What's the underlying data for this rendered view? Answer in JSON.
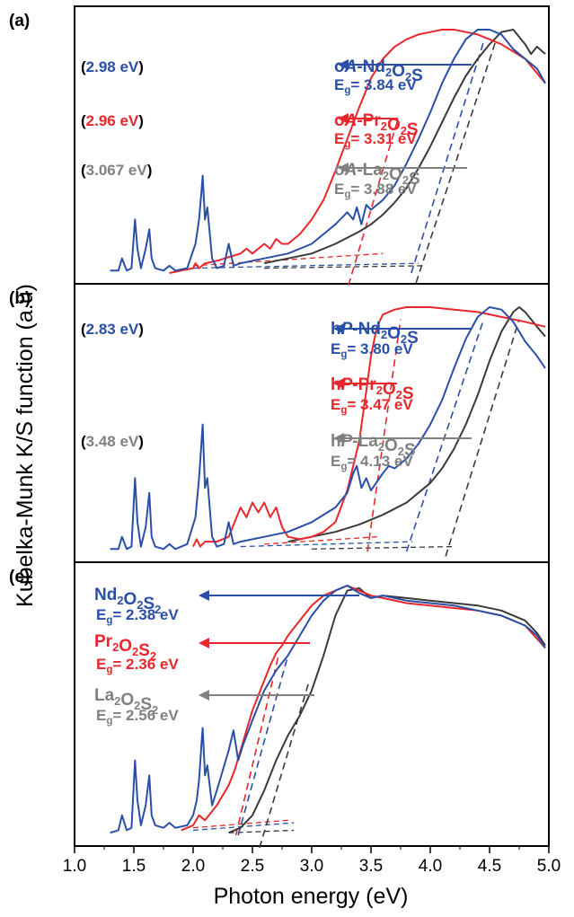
{
  "chart_data": {
    "type": "line",
    "ylabel": "Kubelka-Munk K/S function (a.u)",
    "xlabel": "Photon energy (eV)",
    "xlim": [
      1.0,
      5.0
    ],
    "x_ticks": [
      "1.0",
      "1.5",
      "2.0",
      "2.5",
      "3.0",
      "3.5",
      "4.0",
      "4.5",
      "5.0"
    ],
    "colors": {
      "Nd": "#2a4fa8",
      "Pr": "#e8262b",
      "La": "#3a3a3a",
      "La_label": "#808080"
    },
    "panels": [
      {
        "label": "(a)",
        "series": [
          {
            "compound": "oA-Nd2O2S",
            "prefix": "o",
            "phase": "A",
            "element": "Nd",
            "color_key": "Nd",
            "bandgap_eV": 3.84,
            "bandgap_text": "= 3.84 eV",
            "secondary_gap_text": "(2.98 eV)",
            "x": [
              1.3,
              1.37,
              1.4,
              1.44,
              1.48,
              1.51,
              1.53,
              1.56,
              1.6,
              1.63,
              1.65,
              1.68,
              1.75,
              1.8,
              1.85,
              1.95,
              2.02,
              2.05,
              2.07,
              2.08,
              2.1,
              2.12,
              2.16,
              2.2,
              2.26,
              2.3,
              2.34,
              2.4,
              2.5,
              2.6,
              2.8,
              3.0,
              3.2,
              3.3,
              3.35,
              3.38,
              3.42,
              3.46,
              3.5,
              3.6,
              3.7,
              3.8,
              3.9,
              4.0,
              4.1,
              4.2,
              4.3,
              4.4,
              4.5,
              4.55,
              4.6,
              4.7,
              4.8,
              4.9,
              4.97
            ],
            "y": [
              0.01,
              0.01,
              0.06,
              0.01,
              0.02,
              0.22,
              0.1,
              0.02,
              0.1,
              0.18,
              0.06,
              0.02,
              0.01,
              0.03,
              0.01,
              0.02,
              0.12,
              0.22,
              0.33,
              0.4,
              0.22,
              0.27,
              0.06,
              0.02,
              0.03,
              0.12,
              0.03,
              0.04,
              0.05,
              0.06,
              0.08,
              0.12,
              0.2,
              0.25,
              0.22,
              0.27,
              0.2,
              0.28,
              0.26,
              0.3,
              0.36,
              0.45,
              0.55,
              0.66,
              0.78,
              0.88,
              0.96,
              1.0,
              1.0,
              0.99,
              0.98,
              0.92,
              0.88,
              0.84,
              0.78
            ]
          },
          {
            "compound": "oA-Pr2O2S",
            "prefix": "o",
            "phase": "A",
            "element": "Pr",
            "color_key": "Pr",
            "bandgap_eV": 3.31,
            "bandgap_text": "= 3.31 eV",
            "secondary_gap_text": "(2.96 eV)",
            "x": [
              1.8,
              1.9,
              2.0,
              2.02,
              2.05,
              2.1,
              2.2,
              2.4,
              2.45,
              2.5,
              2.55,
              2.6,
              2.65,
              2.7,
              2.75,
              2.8,
              2.9,
              3.0,
              3.1,
              3.2,
              3.3,
              3.4,
              3.5,
              3.6,
              3.7,
              3.8,
              3.9,
              4.0,
              4.1,
              4.2,
              4.3,
              4.4,
              4.5,
              4.6,
              4.8,
              4.97
            ],
            "y": [
              0.0,
              0.01,
              0.02,
              0.04,
              0.02,
              0.04,
              0.05,
              0.08,
              0.1,
              0.08,
              0.1,
              0.12,
              0.1,
              0.14,
              0.12,
              0.12,
              0.16,
              0.22,
              0.3,
              0.42,
              0.55,
              0.68,
              0.8,
              0.88,
              0.93,
              0.96,
              0.98,
              0.99,
              1.0,
              1.0,
              0.99,
              0.98,
              0.96,
              0.94,
              0.88,
              0.78
            ]
          },
          {
            "compound": "oA-La2O2S",
            "prefix": "o",
            "phase": "A",
            "element": "La",
            "color_key": "La",
            "bandgap_eV": 3.88,
            "bandgap_text": "= 3.88 eV",
            "secondary_gap_text": "(3.067 eV)",
            "x": [
              2.6,
              2.8,
              3.0,
              3.2,
              3.4,
              3.5,
              3.6,
              3.7,
              3.8,
              3.9,
              4.0,
              4.1,
              4.2,
              4.3,
              4.4,
              4.5,
              4.6,
              4.7,
              4.8,
              4.85,
              4.9,
              4.97
            ],
            "y": [
              0.04,
              0.06,
              0.08,
              0.12,
              0.17,
              0.2,
              0.24,
              0.29,
              0.35,
              0.43,
              0.52,
              0.62,
              0.72,
              0.81,
              0.88,
              0.94,
              0.99,
              1.0,
              0.94,
              0.9,
              0.93,
              0.9
            ]
          }
        ]
      },
      {
        "label": "(b)",
        "series": [
          {
            "compound": "hP-Nd2O2S",
            "prefix": "h",
            "phase": "P",
            "element": "Nd",
            "color_key": "Nd",
            "bandgap_eV": 3.8,
            "bandgap_text": "= 3.80 eV",
            "secondary_gap_text": "(2.83 eV)",
            "x": [
              1.3,
              1.37,
              1.4,
              1.44,
              1.48,
              1.51,
              1.53,
              1.56,
              1.6,
              1.63,
              1.65,
              1.68,
              1.75,
              1.8,
              1.85,
              1.95,
              2.02,
              2.05,
              2.07,
              2.08,
              2.1,
              2.12,
              2.16,
              2.2,
              2.26,
              2.3,
              2.34,
              2.4,
              2.6,
              2.8,
              3.0,
              3.2,
              3.3,
              3.35,
              3.38,
              3.42,
              3.46,
              3.5,
              3.6,
              3.65,
              3.7,
              3.8,
              3.9,
              4.0,
              4.1,
              4.2,
              4.3,
              4.4,
              4.5,
              4.6,
              4.7,
              4.8,
              4.9,
              4.97
            ],
            "y": [
              0.01,
              0.01,
              0.06,
              0.01,
              0.02,
              0.3,
              0.12,
              0.02,
              0.1,
              0.24,
              0.06,
              0.02,
              0.01,
              0.03,
              0.01,
              0.03,
              0.14,
              0.3,
              0.44,
              0.52,
              0.26,
              0.3,
              0.06,
              0.02,
              0.03,
              0.12,
              0.03,
              0.04,
              0.06,
              0.08,
              0.12,
              0.18,
              0.24,
              0.32,
              0.35,
              0.26,
              0.3,
              0.25,
              0.32,
              0.35,
              0.34,
              0.38,
              0.44,
              0.52,
              0.62,
              0.75,
              0.87,
              0.96,
              1.0,
              0.99,
              0.94,
              0.86,
              0.8,
              0.75
            ]
          },
          {
            "compound": "hP-Pr2O2S",
            "prefix": "h",
            "phase": "P",
            "element": "Pr",
            "color_key": "Pr",
            "bandgap_eV": 3.47,
            "bandgap_text": "= 3.47 eV",
            "secondary_gap_text": "",
            "x": [
              2.0,
              2.03,
              2.06,
              2.1,
              2.2,
              2.3,
              2.35,
              2.4,
              2.45,
              2.5,
              2.55,
              2.6,
              2.65,
              2.7,
              2.75,
              2.8,
              2.9,
              3.0,
              3.1,
              3.2,
              3.3,
              3.4,
              3.45,
              3.5,
              3.55,
              3.6,
              3.65,
              3.7,
              3.8,
              4.0,
              4.2,
              4.4,
              4.6,
              4.8,
              4.97
            ],
            "y": [
              0.02,
              0.05,
              0.02,
              0.04,
              0.04,
              0.06,
              0.12,
              0.18,
              0.14,
              0.2,
              0.16,
              0.2,
              0.14,
              0.18,
              0.1,
              0.06,
              0.05,
              0.06,
              0.08,
              0.12,
              0.25,
              0.45,
              0.62,
              0.8,
              0.92,
              0.97,
              0.98,
              0.99,
              1.0,
              1.0,
              0.99,
              0.98,
              0.96,
              0.94,
              0.92
            ]
          },
          {
            "compound": "hP-La2O2S",
            "prefix": "h",
            "phase": "P",
            "element": "La",
            "color_key": "La",
            "bandgap_eV": 4.13,
            "bandgap_text": "= 4.13 eV",
            "secondary_gap_text": "(3.48 eV)",
            "x": [
              2.8,
              3.0,
              3.2,
              3.4,
              3.6,
              3.8,
              3.9,
              4.0,
              4.1,
              4.2,
              4.3,
              4.4,
              4.5,
              4.6,
              4.7,
              4.75,
              4.8,
              4.9,
              4.97
            ],
            "y": [
              0.04,
              0.06,
              0.08,
              0.11,
              0.15,
              0.2,
              0.24,
              0.28,
              0.34,
              0.42,
              0.52,
              0.64,
              0.78,
              0.9,
              0.98,
              1.0,
              0.98,
              0.92,
              0.88
            ]
          }
        ]
      },
      {
        "label": "(c)",
        "series": [
          {
            "compound": "Nd2O2S2",
            "prefix": "",
            "phase": "",
            "element": "Nd",
            "color_key": "Nd",
            "bandgap_eV": 2.38,
            "bandgap_text": "= 2.38 eV",
            "secondary_gap_text": "",
            "x": [
              1.3,
              1.37,
              1.4,
              1.44,
              1.48,
              1.51,
              1.53,
              1.56,
              1.6,
              1.63,
              1.65,
              1.68,
              1.75,
              1.8,
              1.85,
              1.95,
              2.0,
              2.03,
              2.05,
              2.07,
              2.08,
              2.1,
              2.12,
              2.16,
              2.2,
              2.25,
              2.3,
              2.34,
              2.38,
              2.42,
              2.5,
              2.6,
              2.7,
              2.8,
              2.9,
              3.0,
              3.1,
              3.2,
              3.3,
              3.4,
              3.5,
              3.6,
              3.8,
              4.0,
              4.2,
              4.4,
              4.6,
              4.8,
              4.9,
              4.97
            ],
            "y": [
              0.01,
              0.02,
              0.08,
              0.02,
              0.03,
              0.3,
              0.14,
              0.04,
              0.12,
              0.24,
              0.08,
              0.04,
              0.03,
              0.05,
              0.03,
              0.04,
              0.08,
              0.14,
              0.22,
              0.36,
              0.43,
              0.24,
              0.28,
              0.12,
              0.18,
              0.26,
              0.34,
              0.42,
              0.3,
              0.36,
              0.46,
              0.58,
              0.66,
              0.72,
              0.8,
              0.88,
              0.94,
              0.98,
              1.0,
              0.97,
              0.95,
              0.96,
              0.94,
              0.93,
              0.92,
              0.9,
              0.88,
              0.84,
              0.8,
              0.75
            ]
          },
          {
            "compound": "Pr2O2S2",
            "prefix": "",
            "phase": "",
            "element": "Pr",
            "color_key": "Pr",
            "bandgap_eV": 2.36,
            "bandgap_text": "= 2.36 eV",
            "secondary_gap_text": "",
            "x": [
              1.9,
              2.0,
              2.05,
              2.1,
              2.2,
              2.25,
              2.3,
              2.35,
              2.4,
              2.45,
              2.5,
              2.55,
              2.6,
              2.65,
              2.7,
              2.75,
              2.8,
              2.9,
              3.0,
              3.1,
              3.2,
              3.3,
              3.4,
              3.5,
              3.6,
              3.8,
              4.0,
              4.2,
              4.4,
              4.6,
              4.8,
              4.97
            ],
            "y": [
              0.02,
              0.04,
              0.08,
              0.06,
              0.12,
              0.16,
              0.2,
              0.26,
              0.34,
              0.42,
              0.5,
              0.56,
              0.62,
              0.68,
              0.73,
              0.76,
              0.8,
              0.86,
              0.92,
              0.96,
              0.98,
              1.0,
              0.98,
              0.96,
              0.95,
              0.93,
              0.92,
              0.91,
              0.9,
              0.88,
              0.84,
              0.75
            ]
          },
          {
            "compound": "La2O2S2",
            "prefix": "",
            "phase": "",
            "element": "La",
            "color_key": "La",
            "bandgap_eV": 2.56,
            "bandgap_text": "= 2.56 eV",
            "secondary_gap_text": "",
            "x": [
              2.3,
              2.4,
              2.5,
              2.6,
              2.7,
              2.8,
              2.9,
              3.0,
              3.1,
              3.2,
              3.3,
              3.4,
              3.5,
              3.6,
              3.8,
              4.0,
              4.2,
              4.4,
              4.6,
              4.8,
              4.9,
              4.97
            ],
            "y": [
              0.01,
              0.03,
              0.08,
              0.18,
              0.3,
              0.4,
              0.48,
              0.58,
              0.72,
              0.88,
              0.98,
              0.99,
              0.95,
              0.96,
              0.95,
              0.94,
              0.93,
              0.92,
              0.9,
              0.86,
              0.81,
              0.76
            ]
          }
        ]
      }
    ]
  }
}
